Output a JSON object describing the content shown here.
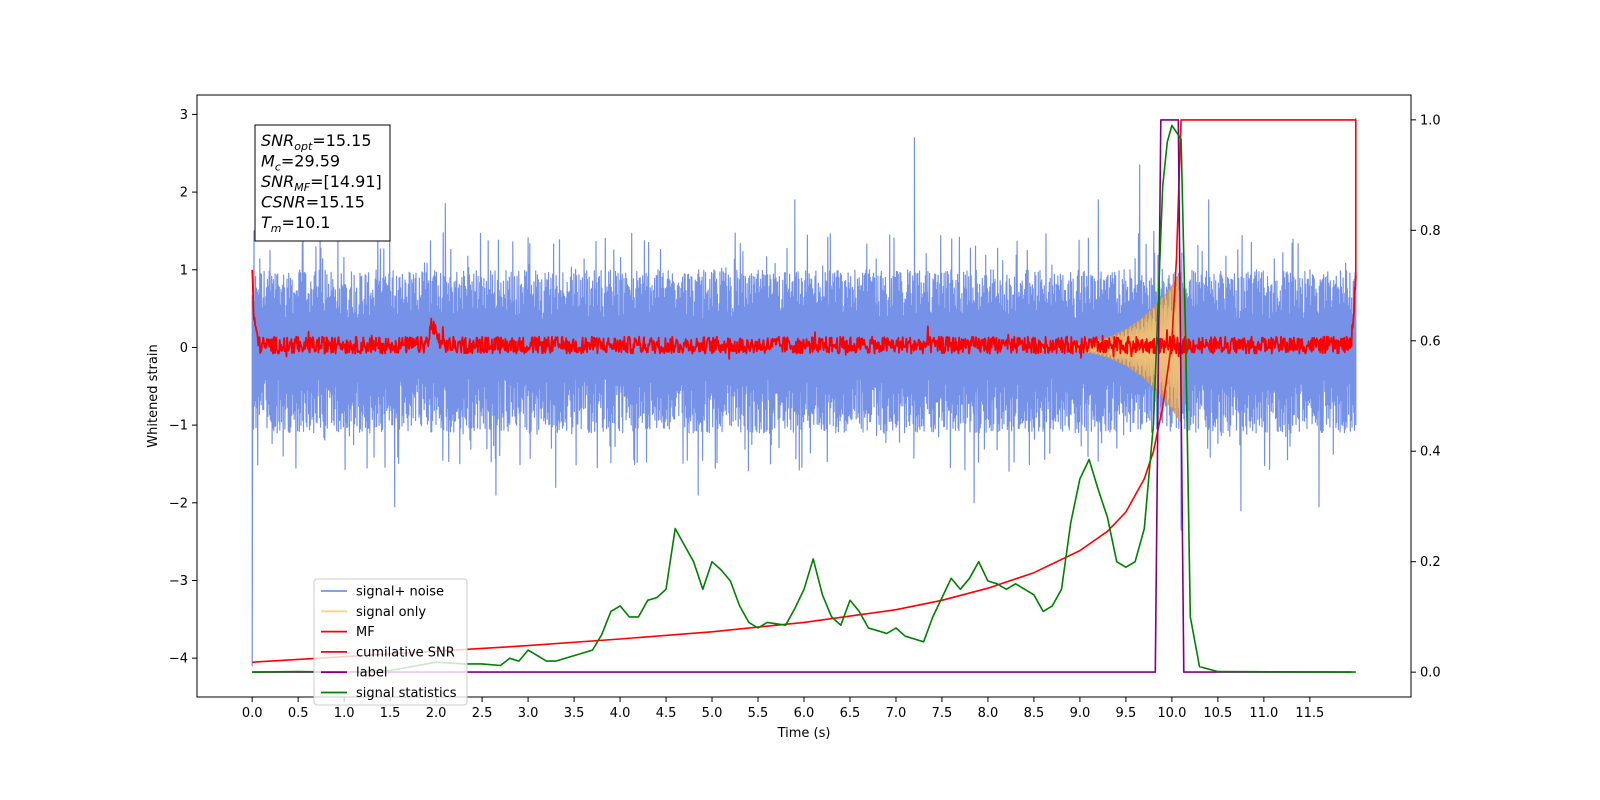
{
  "chart_data": {
    "type": "line",
    "title": "",
    "xlabel": "Time (s)",
    "ylabel": "Whitened strain",
    "xlim": [
      -0.6,
      12.6
    ],
    "ylim": [
      -4.5,
      3.25
    ],
    "y2lim": [
      -0.045,
      1.045
    ],
    "x_ticks": [
      0.0,
      0.5,
      1.0,
      1.5,
      2.0,
      2.5,
      3.0,
      3.5,
      4.0,
      4.5,
      5.0,
      5.5,
      6.0,
      6.5,
      7.0,
      7.5,
      8.0,
      8.5,
      9.0,
      9.5,
      10.0,
      10.5,
      11.0,
      11.5
    ],
    "x_tick_labels": [
      "0.0",
      "0.5",
      "1.0",
      "1.5",
      "2.0",
      "2.5",
      "3.0",
      "3.5",
      "4.0",
      "4.5",
      "5.0",
      "5.5",
      "6.0",
      "6.5",
      "7.0",
      "7.5",
      "8.0",
      "8.5",
      "9.0",
      "9.5",
      "10.0",
      "10.5",
      "11.0",
      "11.5"
    ],
    "y_ticks": [
      3,
      2,
      1,
      0,
      -1,
      -2,
      -3,
      -4
    ],
    "y_tick_labels": [
      "3",
      "2",
      "1",
      "0",
      "−1",
      "−2",
      "−3",
      "−4"
    ],
    "y2_ticks": [
      1.0,
      0.8,
      0.6,
      0.4,
      0.2,
      0.0
    ],
    "y2_tick_labels": [
      "1.0",
      "0.8",
      "0.6",
      "0.4",
      "0.2",
      "0.0"
    ],
    "grid": false,
    "legend_position": "lower-left",
    "annotation": [
      {
        "symbol": "SNR",
        "sub": "opt",
        "value": "=15.15"
      },
      {
        "symbol": "M",
        "sub": "c",
        "value": "=29.59"
      },
      {
        "symbol": "SNR",
        "sub": "MF",
        "value": "=[14.91]"
      },
      {
        "symbol": "CSNR",
        "sub": "",
        "value": "=15.15"
      },
      {
        "symbol": "T",
        "sub": "m",
        "value": "=10.1"
      }
    ],
    "series": [
      {
        "name": "signal+ noise",
        "axis": "left",
        "color": "#7692e8",
        "x_range": [
          0.0,
          12.0
        ],
        "envelope_upper": 1.0,
        "envelope_lower": -1.1,
        "spikes": [
          {
            "x": 0.0,
            "y": -4.1
          },
          {
            "x": 0.02,
            "y": 1.5
          },
          {
            "x": 0.55,
            "y": 1.9
          },
          {
            "x": 1.25,
            "y": -1.55
          },
          {
            "x": 1.55,
            "y": -2.05
          },
          {
            "x": 2.1,
            "y": 1.85
          },
          {
            "x": 2.65,
            "y": -1.9
          },
          {
            "x": 3.3,
            "y": -1.8
          },
          {
            "x": 3.75,
            "y": -0.5
          },
          {
            "x": 4.85,
            "y": -1.9
          },
          {
            "x": 5.9,
            "y": 1.9
          },
          {
            "x": 7.2,
            "y": 2.7
          },
          {
            "x": 7.85,
            "y": -2.0
          },
          {
            "x": 9.2,
            "y": 1.9
          },
          {
            "x": 9.65,
            "y": 2.35
          },
          {
            "x": 10.1,
            "y": -2.35
          },
          {
            "x": 10.4,
            "y": 1.9
          },
          {
            "x": 10.75,
            "y": -2.1
          },
          {
            "x": 11.6,
            "y": -2.05
          },
          {
            "x": 12.0,
            "y": 2.95
          },
          {
            "x": 12.0,
            "y": -1.0
          }
        ]
      },
      {
        "name": "signal only",
        "axis": "left",
        "color": "#ffd27a",
        "fill_color": "#c8935a",
        "chirp_start": 8.5,
        "chirp_peak": 10.1,
        "peak_amplitude": 0.95
      },
      {
        "name": "MF",
        "axis": "left",
        "color": "#ff0000",
        "x_range": [
          0.0,
          12.0
        ],
        "points": [
          [
            0.0,
            1.0
          ],
          [
            0.02,
            0.35
          ],
          [
            0.08,
            0.05
          ],
          [
            1.9,
            0.05
          ],
          [
            1.95,
            0.32
          ],
          [
            2.05,
            0.05
          ],
          [
            11.95,
            0.05
          ],
          [
            12.0,
            0.92
          ]
        ]
      },
      {
        "name": "cumilative SNR",
        "axis": "right",
        "color": "#ff0000",
        "points": [
          [
            0.0,
            0.018
          ],
          [
            1.0,
            0.028
          ],
          [
            2.0,
            0.038
          ],
          [
            3.0,
            0.048
          ],
          [
            4.0,
            0.06
          ],
          [
            5.0,
            0.073
          ],
          [
            6.0,
            0.09
          ],
          [
            7.0,
            0.113
          ],
          [
            7.5,
            0.13
          ],
          [
            8.0,
            0.152
          ],
          [
            8.5,
            0.18
          ],
          [
            9.0,
            0.22
          ],
          [
            9.3,
            0.255
          ],
          [
            9.5,
            0.29
          ],
          [
            9.7,
            0.35
          ],
          [
            9.8,
            0.4
          ],
          [
            9.9,
            0.48
          ],
          [
            10.0,
            0.6
          ],
          [
            10.05,
            0.75
          ],
          [
            10.08,
            0.9
          ],
          [
            10.1,
            1.0
          ],
          [
            12.0,
            1.0
          ],
          [
            12.0,
            0.71
          ]
        ]
      },
      {
        "name": "label",
        "axis": "right",
        "color": "#800080",
        "points": [
          [
            0.0,
            0.0
          ],
          [
            9.82,
            0.0
          ],
          [
            9.88,
            1.0
          ],
          [
            10.07,
            1.0
          ],
          [
            10.13,
            0.0
          ],
          [
            11.95,
            0.0
          ]
        ]
      },
      {
        "name": "signal statistics",
        "axis": "right",
        "color": "#008000",
        "points": [
          [
            0.0,
            0.0
          ],
          [
            0.5,
            0.001
          ],
          [
            1.0,
            0.0
          ],
          [
            1.5,
            0.003
          ],
          [
            2.0,
            0.018
          ],
          [
            2.3,
            0.015
          ],
          [
            2.5,
            0.015
          ],
          [
            2.7,
            0.012
          ],
          [
            2.8,
            0.025
          ],
          [
            2.9,
            0.02
          ],
          [
            3.0,
            0.04
          ],
          [
            3.1,
            0.03
          ],
          [
            3.2,
            0.02
          ],
          [
            3.3,
            0.02
          ],
          [
            3.5,
            0.03
          ],
          [
            3.7,
            0.04
          ],
          [
            3.8,
            0.068
          ],
          [
            3.9,
            0.11
          ],
          [
            4.0,
            0.12
          ],
          [
            4.1,
            0.1
          ],
          [
            4.2,
            0.1
          ],
          [
            4.3,
            0.13
          ],
          [
            4.4,
            0.135
          ],
          [
            4.5,
            0.15
          ],
          [
            4.6,
            0.26
          ],
          [
            4.7,
            0.23
          ],
          [
            4.8,
            0.2
          ],
          [
            4.9,
            0.15
          ],
          [
            5.0,
            0.2
          ],
          [
            5.1,
            0.185
          ],
          [
            5.2,
            0.165
          ],
          [
            5.3,
            0.12
          ],
          [
            5.4,
            0.09
          ],
          [
            5.5,
            0.08
          ],
          [
            5.6,
            0.09
          ],
          [
            5.8,
            0.085
          ],
          [
            5.9,
            0.115
          ],
          [
            6.0,
            0.15
          ],
          [
            6.1,
            0.205
          ],
          [
            6.2,
            0.14
          ],
          [
            6.3,
            0.1
          ],
          [
            6.4,
            0.085
          ],
          [
            6.5,
            0.13
          ],
          [
            6.6,
            0.11
          ],
          [
            6.7,
            0.08
          ],
          [
            6.8,
            0.075
          ],
          [
            6.9,
            0.07
          ],
          [
            7.0,
            0.08
          ],
          [
            7.1,
            0.065
          ],
          [
            7.2,
            0.06
          ],
          [
            7.3,
            0.055
          ],
          [
            7.4,
            0.1
          ],
          [
            7.5,
            0.135
          ],
          [
            7.6,
            0.17
          ],
          [
            7.7,
            0.15
          ],
          [
            7.8,
            0.17
          ],
          [
            7.9,
            0.2
          ],
          [
            8.0,
            0.165
          ],
          [
            8.1,
            0.16
          ],
          [
            8.2,
            0.15
          ],
          [
            8.3,
            0.16
          ],
          [
            8.4,
            0.15
          ],
          [
            8.5,
            0.14
          ],
          [
            8.6,
            0.11
          ],
          [
            8.7,
            0.12
          ],
          [
            8.8,
            0.15
          ],
          [
            8.9,
            0.27
          ],
          [
            9.0,
            0.35
          ],
          [
            9.1,
            0.385
          ],
          [
            9.2,
            0.33
          ],
          [
            9.3,
            0.28
          ],
          [
            9.4,
            0.2
          ],
          [
            9.5,
            0.19
          ],
          [
            9.6,
            0.2
          ],
          [
            9.7,
            0.26
          ],
          [
            9.8,
            0.45
          ],
          [
            9.9,
            0.88
          ],
          [
            9.95,
            0.96
          ],
          [
            10.0,
            0.99
          ],
          [
            10.1,
            0.965
          ],
          [
            10.15,
            0.6
          ],
          [
            10.2,
            0.1
          ],
          [
            10.3,
            0.01
          ],
          [
            10.5,
            0.001
          ],
          [
            12.0,
            0.0
          ]
        ]
      }
    ]
  }
}
